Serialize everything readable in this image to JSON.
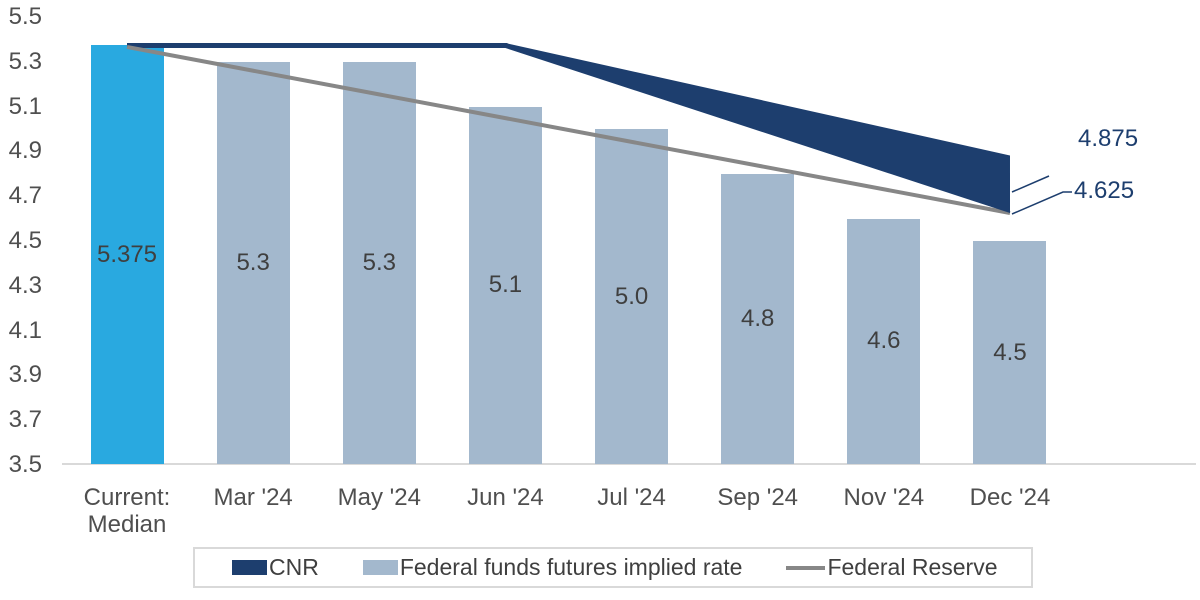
{
  "chart_data": {
    "type": "bar+line",
    "categories": [
      "Current:\nMedian",
      "Mar '24",
      "May '24",
      "Jun '24",
      "Jul '24",
      "Sep '24",
      "Nov '24",
      "Dec '24"
    ],
    "series": [
      {
        "name": "CNR",
        "type": "area-band",
        "color": "#1d3e6e",
        "flat_line": [
          [
            0,
            5.375
          ],
          [
            3,
            5.375
          ]
        ],
        "wedge": {
          "start": [
            3,
            5.375
          ],
          "upper_end": [
            7,
            4.875
          ],
          "lower_end": [
            7,
            4.625
          ]
        },
        "end_label": "4.875"
      },
      {
        "name": "Federal funds futures implied rate",
        "type": "bar",
        "values": [
          5.375,
          5.3,
          5.3,
          5.1,
          5.0,
          4.8,
          4.6,
          4.5
        ],
        "labels": [
          "5.375",
          "5.3",
          "5.3",
          "5.1",
          "5.0",
          "4.8",
          "4.6",
          "4.5"
        ],
        "bar_color": "#a3b8cd",
        "highlight_color": "#29a9e0",
        "highlight_index": 0
      },
      {
        "name": "Federal Reserve",
        "type": "line",
        "color": "#878787",
        "points": [
          [
            0,
            5.375
          ],
          [
            7,
            4.625
          ]
        ],
        "end_label": "4.625"
      }
    ],
    "y_axis": {
      "min": 3.5,
      "max": 5.5,
      "step": 0.2,
      "ticks": [
        "5.5",
        "5.3",
        "5.1",
        "4.9",
        "4.7",
        "4.5",
        "4.3",
        "4.1",
        "3.9",
        "3.7",
        "3.5"
      ]
    },
    "legend": {
      "items": [
        {
          "label": "CNR",
          "swatch": "rect",
          "color": "#1d3e6e"
        },
        {
          "label": "Federal funds futures implied rate",
          "swatch": "rect",
          "color": "#a3b8cd"
        },
        {
          "label": "Federal Reserve",
          "swatch": "line",
          "color": "#878787"
        }
      ]
    },
    "end_labels": {
      "cnr": "4.875",
      "fed": "4.625"
    },
    "grid": false,
    "legend_position": "bottom"
  }
}
